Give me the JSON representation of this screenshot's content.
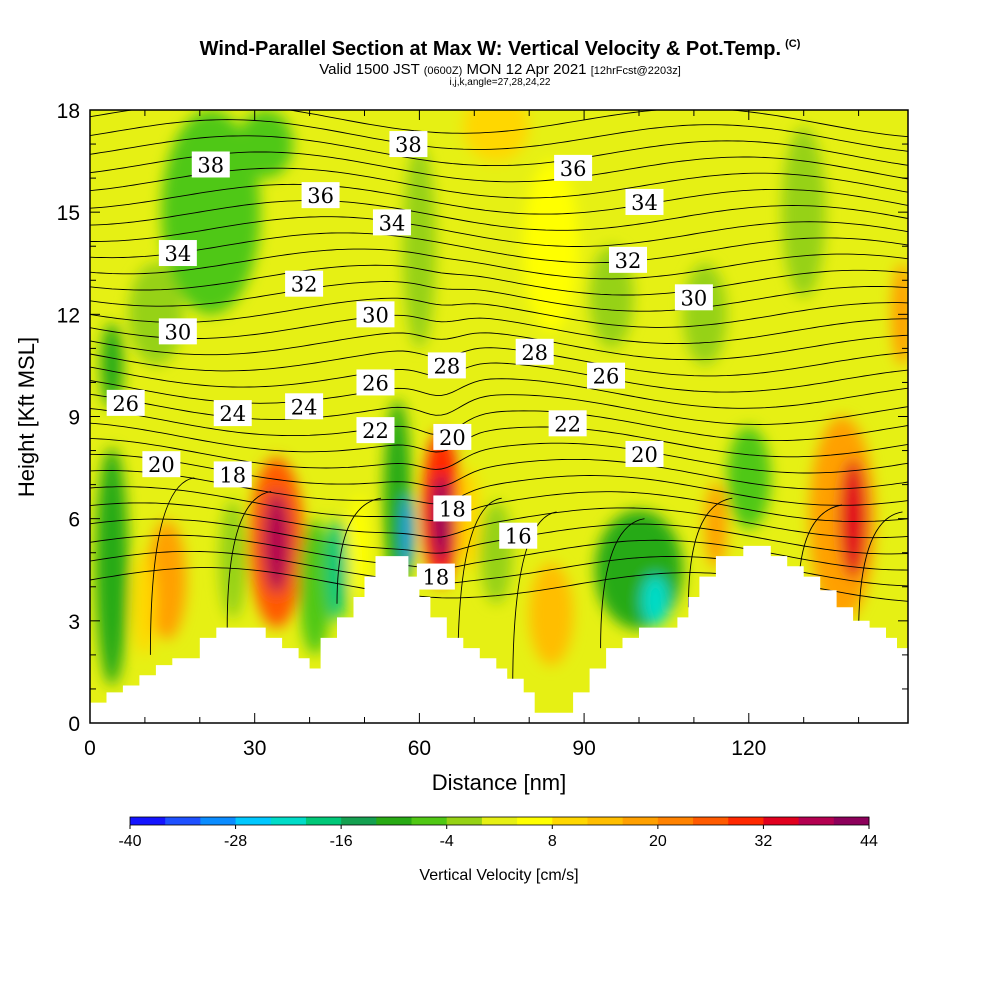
{
  "header": {
    "title": "Wind-Parallel Section at Max W: Vertical Velocity & Pot.Temp.",
    "title_mark": "(C)",
    "valid_prefix": "Valid 1500 JST",
    "valid_utc": "(0600Z)",
    "valid_date": "MON 12 Apr 2021",
    "forecast": "[12hrFcst@2203z]",
    "grid_info": "i,j,k,angle=27,28,24,22"
  },
  "chart_data": {
    "type": "heatmap",
    "xlabel": "Distance [nm]",
    "ylabel": "Height [Kft MSL]",
    "xlim": [
      0,
      149
    ],
    "ylim": [
      0,
      18
    ],
    "x_ticks": [
      0,
      30,
      60,
      90,
      120
    ],
    "y_ticks": [
      0,
      3,
      6,
      9,
      12,
      15,
      18
    ],
    "colorbar": {
      "title": "Vertical Velocity [cm/s]",
      "min": -40,
      "max": 44,
      "step": 4,
      "tick_labels": [
        -40,
        -28,
        -16,
        -4,
        8,
        20,
        32,
        44
      ],
      "colors": [
        "#1414ff",
        "#1e50ff",
        "#0a8cff",
        "#00c8ff",
        "#00dcc8",
        "#00c878",
        "#14a050",
        "#28aa14",
        "#50c814",
        "#96d214",
        "#e6f014",
        "#ffff00",
        "#ffd700",
        "#ffbe00",
        "#ffa000",
        "#ff8200",
        "#ff5a00",
        "#ff2800",
        "#e1001e",
        "#b40050",
        "#8c005a"
      ]
    },
    "terrain_profile": [
      [
        0,
        0.6
      ],
      [
        3,
        0.6
      ],
      [
        3,
        0.9
      ],
      [
        6,
        0.9
      ],
      [
        6,
        1.1
      ],
      [
        9,
        1.1
      ],
      [
        9,
        1.4
      ],
      [
        12,
        1.4
      ],
      [
        12,
        1.7
      ],
      [
        15,
        1.7
      ],
      [
        15,
        1.9
      ],
      [
        20,
        1.9
      ],
      [
        20,
        2.5
      ],
      [
        23,
        2.5
      ],
      [
        23,
        2.8
      ],
      [
        32,
        2.8
      ],
      [
        32,
        2.5
      ],
      [
        35,
        2.5
      ],
      [
        35,
        2.2
      ],
      [
        38,
        2.2
      ],
      [
        38,
        1.9
      ],
      [
        40,
        1.9
      ],
      [
        40,
        1.6
      ],
      [
        42,
        1.6
      ],
      [
        42,
        2.5
      ],
      [
        45,
        2.5
      ],
      [
        45,
        3.1
      ],
      [
        48,
        3.1
      ],
      [
        48,
        3.7
      ],
      [
        50,
        3.7
      ],
      [
        50,
        4.3
      ],
      [
        52,
        4.3
      ],
      [
        52,
        4.9
      ],
      [
        58,
        4.9
      ],
      [
        58,
        4.3
      ],
      [
        60,
        4.3
      ],
      [
        60,
        3.7
      ],
      [
        62,
        3.7
      ],
      [
        62,
        3.1
      ],
      [
        65,
        3.1
      ],
      [
        65,
        2.5
      ],
      [
        68,
        2.5
      ],
      [
        68,
        2.2
      ],
      [
        71,
        2.2
      ],
      [
        71,
        1.9
      ],
      [
        74,
        1.9
      ],
      [
        74,
        1.6
      ],
      [
        76,
        1.6
      ],
      [
        76,
        1.3
      ],
      [
        79,
        1.3
      ],
      [
        79,
        0.9
      ],
      [
        81,
        0.9
      ],
      [
        81,
        0.3
      ],
      [
        88,
        0.3
      ],
      [
        88,
        0.9
      ],
      [
        91,
        0.9
      ],
      [
        91,
        1.6
      ],
      [
        94,
        1.6
      ],
      [
        94,
        2.2
      ],
      [
        97,
        2.2
      ],
      [
        97,
        2.5
      ],
      [
        100,
        2.5
      ],
      [
        100,
        2.8
      ],
      [
        107,
        2.8
      ],
      [
        107,
        3.1
      ],
      [
        109,
        3.1
      ],
      [
        109,
        3.7
      ],
      [
        111,
        3.7
      ],
      [
        111,
        4.3
      ],
      [
        114,
        4.3
      ],
      [
        114,
        4.9
      ],
      [
        119,
        4.9
      ],
      [
        119,
        5.2
      ],
      [
        124,
        5.2
      ],
      [
        124,
        4.9
      ],
      [
        127,
        4.9
      ],
      [
        127,
        4.6
      ],
      [
        130,
        4.6
      ],
      [
        130,
        4.3
      ],
      [
        133,
        4.3
      ],
      [
        133,
        3.9
      ],
      [
        136,
        3.9
      ],
      [
        136,
        3.4
      ],
      [
        139,
        3.4
      ],
      [
        139,
        3.0
      ],
      [
        142,
        3.0
      ],
      [
        142,
        2.8
      ],
      [
        145,
        2.8
      ],
      [
        145,
        2.5
      ],
      [
        147,
        2.5
      ],
      [
        147,
        2.2
      ],
      [
        149,
        2.2
      ]
    ],
    "velocity_cells": [
      {
        "x": 4,
        "y": 4.6,
        "w": 3,
        "h": 7.0,
        "v": -12
      },
      {
        "x": 4,
        "y": 10.5,
        "w": 2,
        "h": 2.5,
        "v": -12
      },
      {
        "x": 12,
        "y": 12,
        "w": 5,
        "h": 3,
        "v": -4
      },
      {
        "x": 22,
        "y": 15.0,
        "w": 9,
        "h": 6,
        "v": -8
      },
      {
        "x": 32,
        "y": 17.0,
        "w": 5,
        "h": 2.0,
        "v": -8
      },
      {
        "x": 14,
        "y": 4.2,
        "w": 3.5,
        "h": 3.5,
        "v": 16
      },
      {
        "x": 10,
        "y": 3.5,
        "w": 2,
        "h": 3,
        "v": 8
      },
      {
        "x": 26,
        "y": 4.8,
        "w": 2.5,
        "h": 3.5,
        "v": -4
      },
      {
        "x": 34,
        "y": 5.3,
        "w": 5,
        "h": 5,
        "v": 24
      },
      {
        "x": 34,
        "y": 5.3,
        "w": 2.5,
        "h": 3,
        "v": 36
      },
      {
        "x": 41,
        "y": 4.0,
        "w": 3,
        "h": 4,
        "v": -8
      },
      {
        "x": 45,
        "y": 4.5,
        "w": 2,
        "h": 3,
        "v": -20
      },
      {
        "x": 49,
        "y": 5.2,
        "w": 2,
        "h": 3,
        "v": 4
      },
      {
        "x": 56,
        "y": 6.5,
        "w": 2.5,
        "h": 6,
        "v": -12
      },
      {
        "x": 58,
        "y": 5.6,
        "w": 1,
        "h": 2.2,
        "v": -32
      },
      {
        "x": 64,
        "y": 6.3,
        "w": 3.5,
        "h": 4.5,
        "v": 28
      },
      {
        "x": 64,
        "y": 6.0,
        "w": 1.6,
        "h": 2.6,
        "v": 40
      },
      {
        "x": 69,
        "y": 6.0,
        "w": 2,
        "h": 3,
        "v": 8
      },
      {
        "x": 74,
        "y": 5.0,
        "w": 3,
        "h": 3,
        "v": -4
      },
      {
        "x": 84,
        "y": 3.2,
        "w": 4,
        "h": 3,
        "v": 12
      },
      {
        "x": 100,
        "y": 4.5,
        "w": 8,
        "h": 3.5,
        "v": -12
      },
      {
        "x": 103,
        "y": 3.6,
        "w": 2.5,
        "h": 1.5,
        "v": -24
      },
      {
        "x": 114,
        "y": 5.8,
        "w": 2,
        "h": 2.5,
        "v": 16
      },
      {
        "x": 120,
        "y": 7.2,
        "w": 4,
        "h": 3,
        "v": -8
      },
      {
        "x": 137,
        "y": 6.0,
        "w": 6,
        "h": 6,
        "v": 16
      },
      {
        "x": 139,
        "y": 6.0,
        "w": 2.5,
        "h": 3.5,
        "v": 32
      },
      {
        "x": 148,
        "y": 12,
        "w": 2,
        "h": 3,
        "v": 16
      },
      {
        "x": 74,
        "y": 17.5,
        "w": 6,
        "h": 2,
        "v": 8
      },
      {
        "x": 95,
        "y": 12.5,
        "w": 4,
        "h": 3,
        "v": -4
      },
      {
        "x": 112,
        "y": 12,
        "w": 4,
        "h": 3,
        "v": -4
      },
      {
        "x": 84,
        "y": 14,
        "w": 5,
        "h": 5,
        "v": 4
      },
      {
        "x": 60,
        "y": 14,
        "w": 3,
        "h": 6,
        "v": -4
      },
      {
        "x": 130,
        "y": 15,
        "w": 4,
        "h": 5,
        "v": -4
      }
    ],
    "contour_labels": [
      {
        "text": "38",
        "x": 22,
        "y": 16.4
      },
      {
        "text": "38",
        "x": 58,
        "y": 17.0
      },
      {
        "text": "36",
        "x": 88,
        "y": 16.3
      },
      {
        "text": "36",
        "x": 42,
        "y": 15.5
      },
      {
        "text": "34",
        "x": 101,
        "y": 15.3
      },
      {
        "text": "34",
        "x": 55,
        "y": 14.7
      },
      {
        "text": "34",
        "x": 16,
        "y": 13.8
      },
      {
        "text": "32",
        "x": 98,
        "y": 13.6
      },
      {
        "text": "32",
        "x": 39,
        "y": 12.9
      },
      {
        "text": "30",
        "x": 110,
        "y": 12.5
      },
      {
        "text": "30",
        "x": 52,
        "y": 12.0
      },
      {
        "text": "30",
        "x": 16,
        "y": 11.5
      },
      {
        "text": "28",
        "x": 81,
        "y": 10.9
      },
      {
        "text": "28",
        "x": 65,
        "y": 10.5
      },
      {
        "text": "26",
        "x": 94,
        "y": 10.2
      },
      {
        "text": "26",
        "x": 52,
        "y": 10.0
      },
      {
        "text": "26",
        "x": 6.5,
        "y": 9.4
      },
      {
        "text": "24",
        "x": 39,
        "y": 9.3
      },
      {
        "text": "24",
        "x": 26,
        "y": 9.1
      },
      {
        "text": "22",
        "x": 87,
        "y": 8.8
      },
      {
        "text": "22",
        "x": 52,
        "y": 8.6
      },
      {
        "text": "20",
        "x": 66,
        "y": 8.4
      },
      {
        "text": "20",
        "x": 101,
        "y": 7.9
      },
      {
        "text": "20",
        "x": 13,
        "y": 7.6
      },
      {
        "text": "18",
        "x": 26,
        "y": 7.3
      },
      {
        "text": "18",
        "x": 66,
        "y": 6.3
      },
      {
        "text": "18",
        "x": 63,
        "y": 4.3
      },
      {
        "text": "16",
        "x": 78,
        "y": 5.5
      }
    ]
  }
}
